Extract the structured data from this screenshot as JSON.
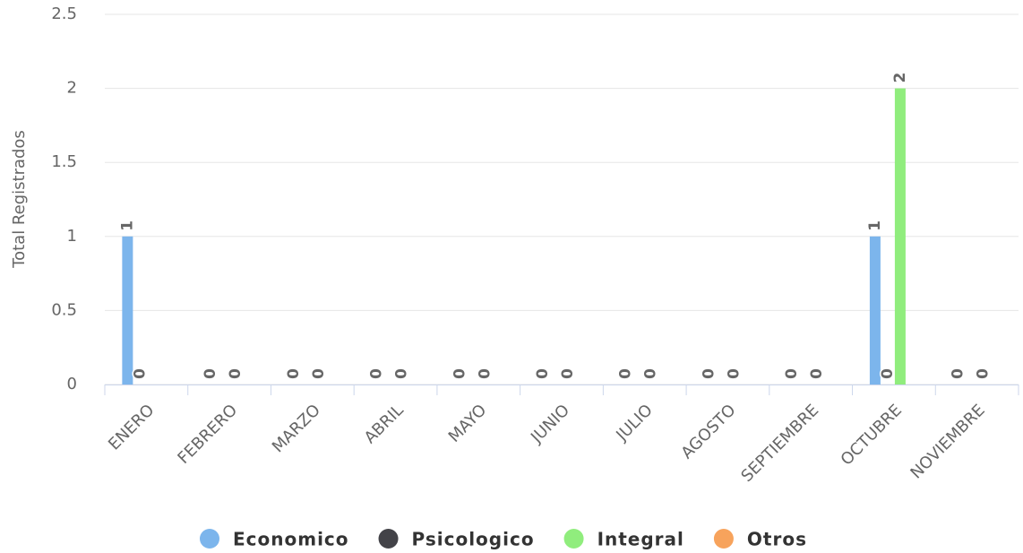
{
  "chart_data": {
    "type": "bar",
    "y_axis_label": "Total Registrados",
    "categories": [
      "ENERO",
      "FEBRERO",
      "MARZO",
      "ABRIL",
      "MAYO",
      "JUNIO",
      "JULIO",
      "AGOSTO",
      "SEPTIEMBRE",
      "OCTUBRE",
      "NOVIEMBRE"
    ],
    "series": [
      {
        "name": "Economico",
        "color": "#7cb5ec",
        "values": [
          1,
          0,
          0,
          0,
          0,
          0,
          0,
          0,
          0,
          1,
          0
        ]
      },
      {
        "name": "Psicologico",
        "color": "#434348",
        "values": [
          0,
          null,
          null,
          null,
          null,
          null,
          null,
          null,
          null,
          0,
          null
        ]
      },
      {
        "name": "Integral",
        "color": "#90ed7d",
        "values": [
          null,
          0,
          0,
          0,
          0,
          0,
          0,
          0,
          0,
          2,
          0
        ]
      },
      {
        "name": "Otros",
        "color": "#f7a35c",
        "values": [
          null,
          null,
          null,
          null,
          null,
          null,
          null,
          null,
          null,
          null,
          null
        ]
      }
    ],
    "ylim": [
      0,
      2.5
    ],
    "yticks": [
      0,
      0.5,
      1,
      1.5,
      2,
      2.5
    ],
    "grid": true,
    "legend": "bottom"
  }
}
